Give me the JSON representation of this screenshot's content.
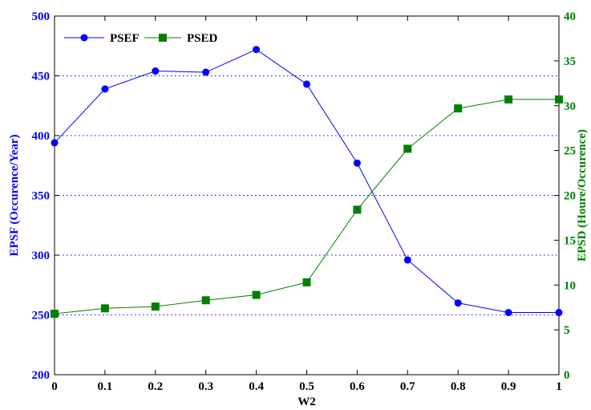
{
  "chart_data": {
    "type": "line",
    "x": [
      0,
      0.1,
      0.2,
      0.3,
      0.4,
      0.5,
      0.6,
      0.7,
      0.8,
      0.9,
      1
    ],
    "x_tick_labels": [
      "0",
      "0.1",
      "0.2",
      "0.3",
      "0.4",
      "0.5",
      "0.6",
      "0.7",
      "0.8",
      "0.9",
      "1"
    ],
    "xlabel": "W2",
    "xlim": [
      0,
      1
    ],
    "y_left": {
      "label": "EPSF (Occurence/Year)",
      "lim": [
        200,
        500
      ],
      "ticks": [
        200,
        250,
        300,
        350,
        400,
        450,
        500
      ],
      "tick_labels": [
        "200",
        "250",
        "300",
        "350",
        "400",
        "450",
        "500"
      ],
      "color": "#0000ff"
    },
    "y_right": {
      "label": "EPSD (Houre/Occurence)",
      "lim": [
        0,
        40
      ],
      "ticks": [
        0,
        5,
        10,
        15,
        20,
        25,
        30,
        35,
        40
      ],
      "tick_labels": [
        "0",
        "5",
        "10",
        "15",
        "20",
        "25",
        "30",
        "35",
        "40"
      ],
      "color": "#008000"
    },
    "series": [
      {
        "name": "PSEF",
        "axis": "left",
        "color": "#0000ff",
        "marker": "circle",
        "values": [
          394,
          439,
          454,
          453,
          472,
          443,
          377,
          296,
          260,
          252,
          252
        ]
      },
      {
        "name": "PSED",
        "axis": "right",
        "color": "#008000",
        "marker": "square",
        "values": [
          6.8,
          7.4,
          7.6,
          8.3,
          8.9,
          10.3,
          18.4,
          25.2,
          29.7,
          30.7,
          30.7
        ]
      }
    ],
    "grid": "horizontal-dotted",
    "legend_position": "top-left"
  }
}
